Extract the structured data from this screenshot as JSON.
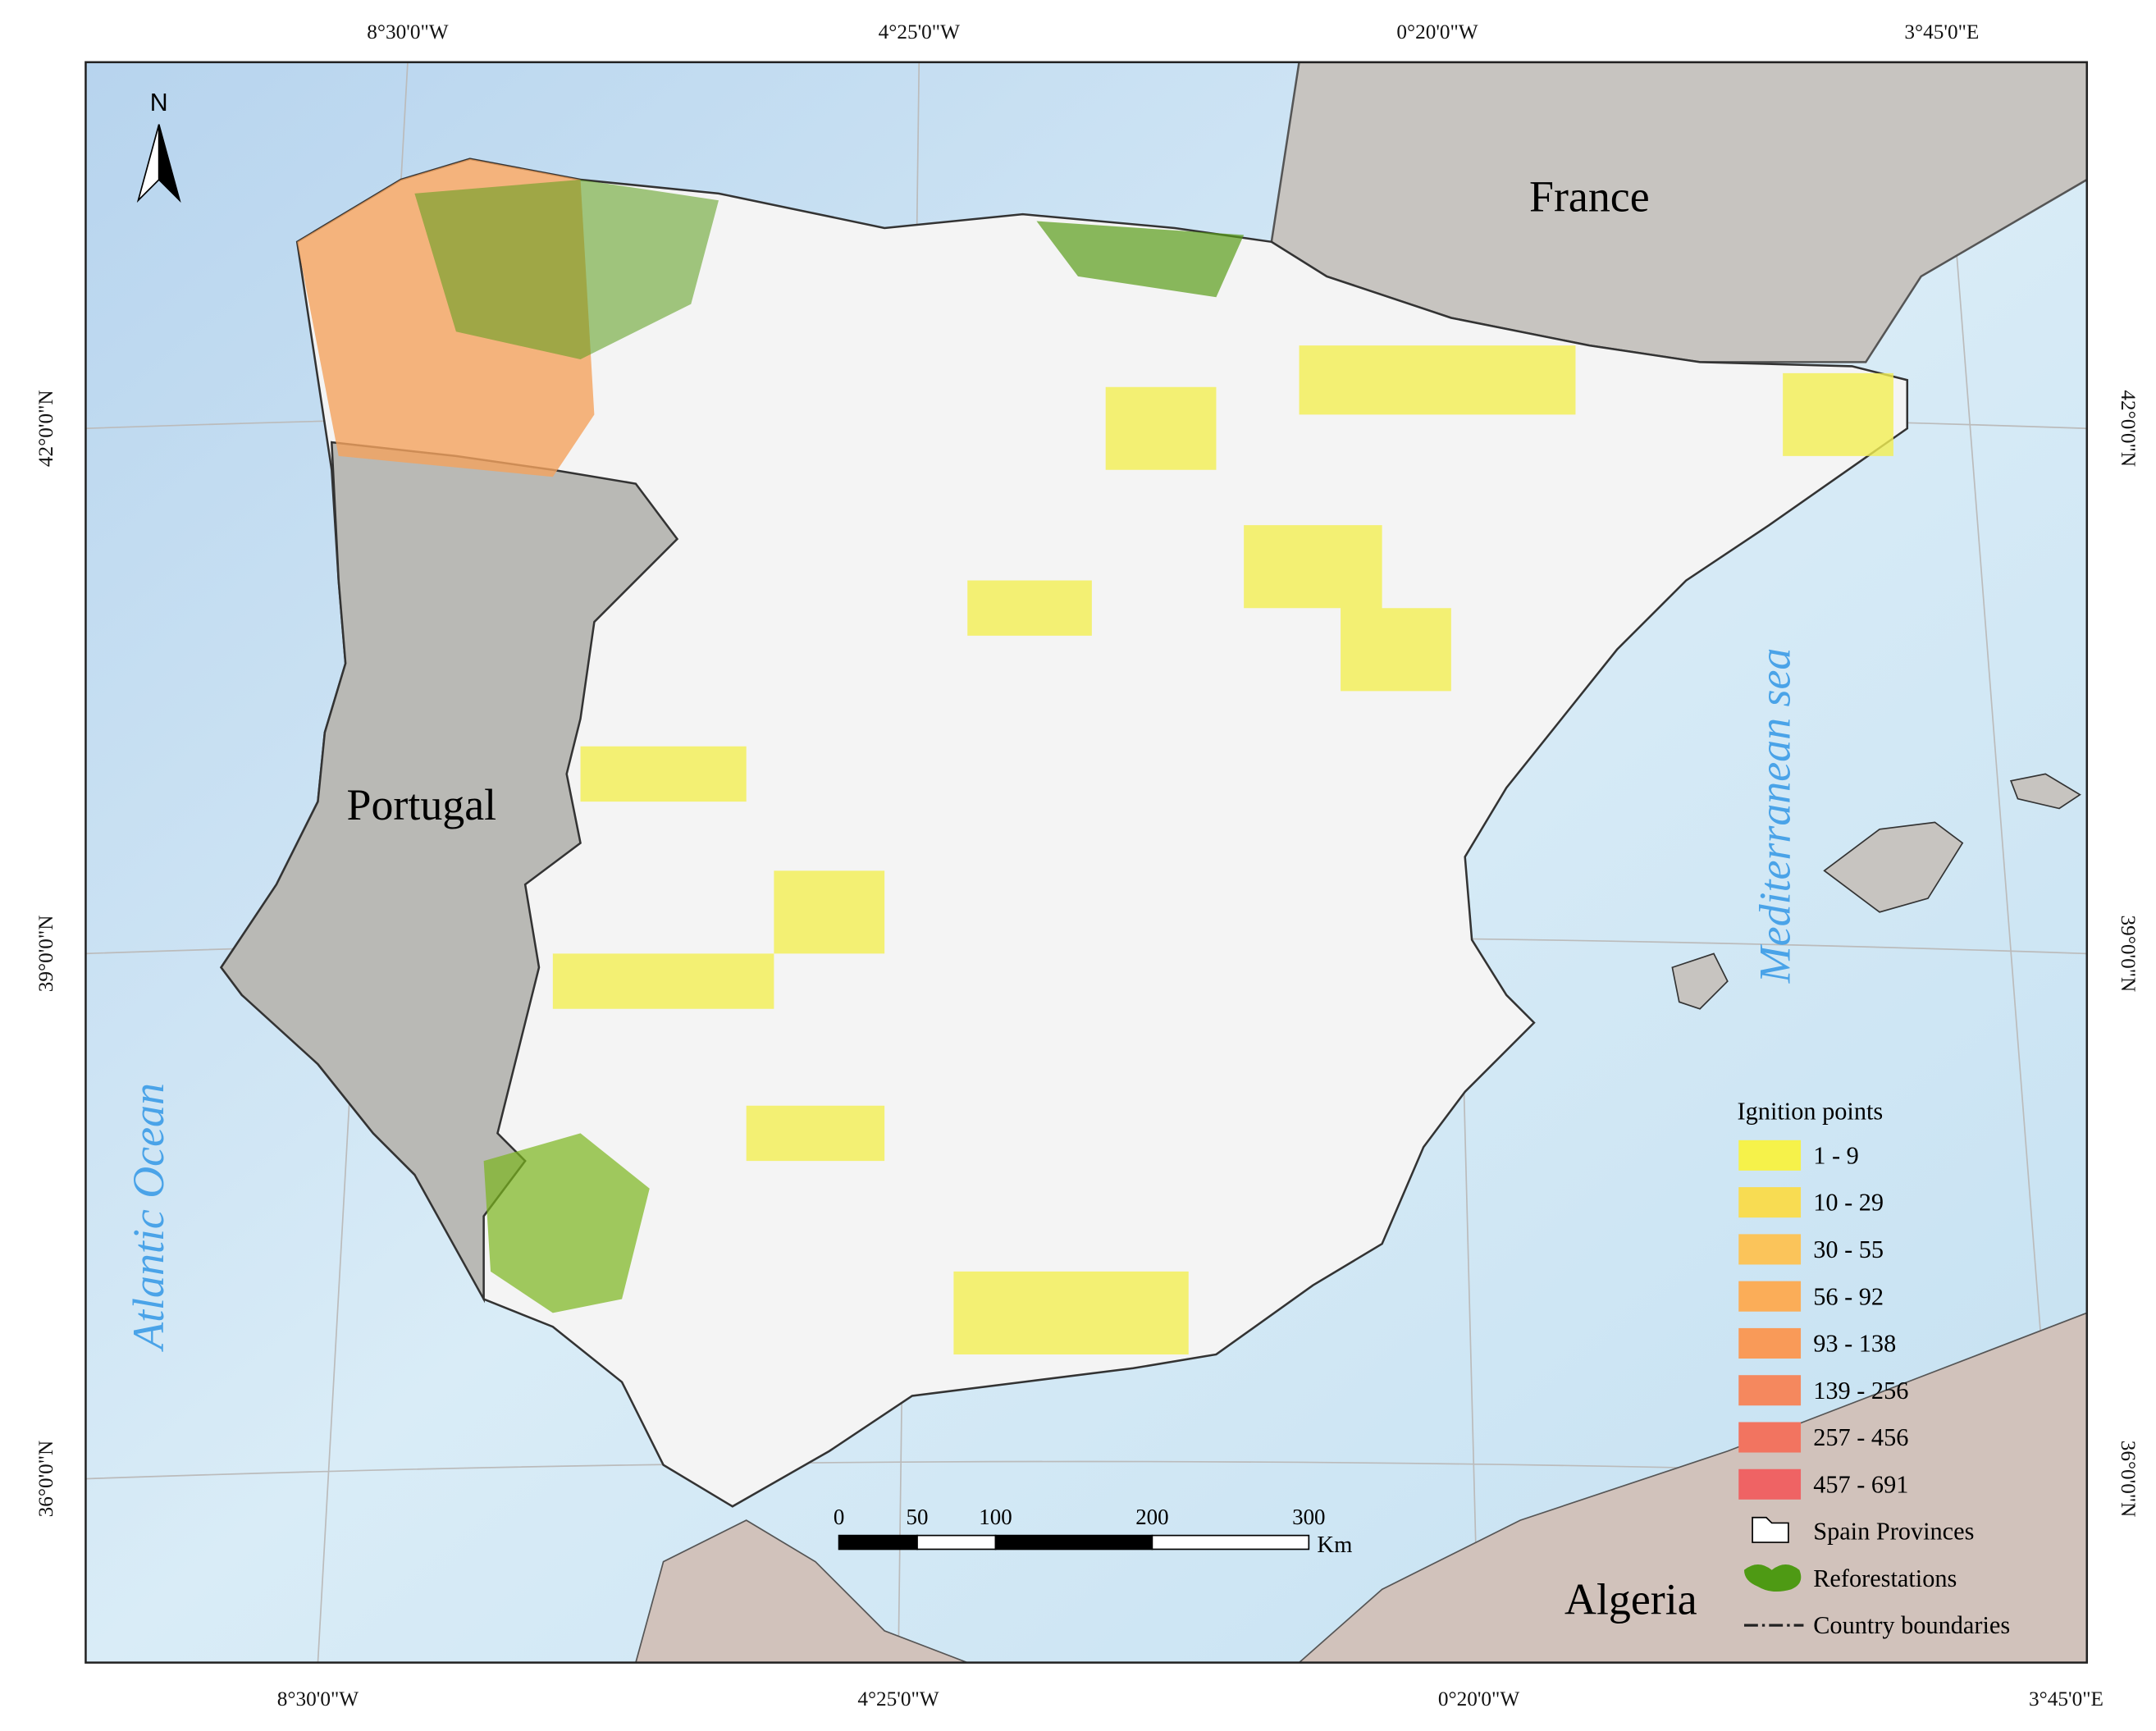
{
  "map": {
    "north": "N",
    "labels": {
      "france": "France",
      "portugal": "Portugal",
      "atlantic": "Atlantic Ocean",
      "mediterranean": "Mediterranean sea",
      "algeria": "Algeria"
    },
    "graticule": {
      "top": [
        "8°30'0\"W",
        "4°25'0\"W",
        "0°20'0\"W",
        "3°45'0\"E"
      ],
      "bottom": [
        "8°30'0\"W",
        "4°25'0\"W",
        "0°20'0\"W",
        "3°45'0\"E"
      ],
      "left": [
        "42°0'0\"N",
        "39°0'0\"N",
        "36°0'0\"N"
      ],
      "right": [
        "42°0'0\"N",
        "39°0'0\"N",
        "36°0'0\"N"
      ]
    },
    "legend": {
      "title": "Ignition points",
      "classes": [
        {
          "label": "1 - 9",
          "color": "#f6f24a"
        },
        {
          "label": "10 - 29",
          "color": "#f8dc52"
        },
        {
          "label": "30 - 55",
          "color": "#fbc45a"
        },
        {
          "label": "56 - 92",
          "color": "#fbad58"
        },
        {
          "label": "93 - 138",
          "color": "#f99a58"
        },
        {
          "label": "139 - 256",
          "color": "#f5885e"
        },
        {
          "label": "257 - 456",
          "color": "#f27460"
        },
        {
          "label": "457 - 691",
          "color": "#ef6364"
        }
      ],
      "provinces": "Spain Provinces",
      "reforestations": "Reforestations",
      "boundaries": "Country boundaries"
    },
    "scale_bar": {
      "ticks": [
        0,
        50,
        100,
        200,
        300
      ],
      "unit": "Km"
    }
  }
}
